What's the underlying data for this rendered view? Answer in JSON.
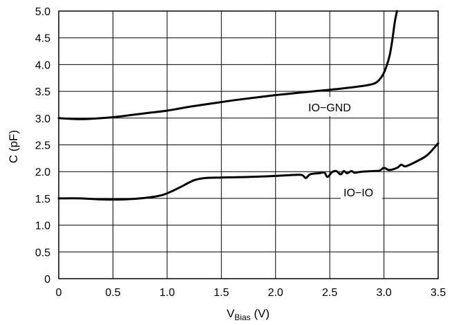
{
  "chart_data": {
    "type": "line",
    "title": "",
    "xlabel": {
      "main": "V",
      "sub": "Bias",
      "suffix": " (V)"
    },
    "ylabel": "C (pF)",
    "xlim": [
      0,
      3.5
    ],
    "ylim": [
      0,
      5.0
    ],
    "grid": true,
    "x_ticks": [
      "0",
      "0.5",
      "1.0",
      "1.5",
      "2.0",
      "2.5",
      "3.0",
      "3.5"
    ],
    "y_ticks": [
      "0",
      "0.5",
      "1.0",
      "1.5",
      "2.0",
      "2.5",
      "3.0",
      "3.5",
      "4.0",
      "4.5",
      "5.0"
    ],
    "series": [
      {
        "name": "IO−GND",
        "points": [
          [
            0.0,
            3.0
          ],
          [
            0.2,
            2.98
          ],
          [
            0.4,
            3.0
          ],
          [
            0.6,
            3.04
          ],
          [
            0.8,
            3.09
          ],
          [
            1.0,
            3.14
          ],
          [
            1.2,
            3.21
          ],
          [
            1.4,
            3.27
          ],
          [
            1.6,
            3.33
          ],
          [
            1.8,
            3.38
          ],
          [
            2.0,
            3.43
          ],
          [
            2.2,
            3.47
          ],
          [
            2.4,
            3.51
          ],
          [
            2.6,
            3.55
          ],
          [
            2.8,
            3.6
          ],
          [
            2.9,
            3.64
          ],
          [
            2.95,
            3.7
          ],
          [
            3.0,
            3.85
          ],
          [
            3.05,
            4.15
          ],
          [
            3.08,
            4.5
          ],
          [
            3.1,
            4.8
          ],
          [
            3.12,
            5.0
          ]
        ]
      },
      {
        "name": "IO−IO",
        "points": [
          [
            0.0,
            1.5
          ],
          [
            0.2,
            1.5
          ],
          [
            0.4,
            1.48
          ],
          [
            0.6,
            1.48
          ],
          [
            0.8,
            1.51
          ],
          [
            0.95,
            1.56
          ],
          [
            1.05,
            1.64
          ],
          [
            1.15,
            1.74
          ],
          [
            1.25,
            1.84
          ],
          [
            1.35,
            1.88
          ],
          [
            1.5,
            1.89
          ],
          [
            1.75,
            1.9
          ],
          [
            2.0,
            1.92
          ],
          [
            2.2,
            1.94
          ],
          [
            2.25,
            1.93
          ],
          [
            2.28,
            1.88
          ],
          [
            2.32,
            1.95
          ],
          [
            2.4,
            1.97
          ],
          [
            2.45,
            1.98
          ],
          [
            2.48,
            1.9
          ],
          [
            2.52,
            1.99
          ],
          [
            2.56,
            2.01
          ],
          [
            2.6,
            1.95
          ],
          [
            2.63,
            2.01
          ],
          [
            2.66,
            1.97
          ],
          [
            2.7,
            2.01
          ],
          [
            2.73,
            1.98
          ],
          [
            2.8,
            2.0
          ],
          [
            2.9,
            2.01
          ],
          [
            2.96,
            2.02
          ],
          [
            3.0,
            2.07
          ],
          [
            3.05,
            2.03
          ],
          [
            3.12,
            2.07
          ],
          [
            3.16,
            2.13
          ],
          [
            3.2,
            2.1
          ],
          [
            3.3,
            2.19
          ],
          [
            3.4,
            2.31
          ],
          [
            3.5,
            2.53
          ]
        ]
      }
    ]
  }
}
